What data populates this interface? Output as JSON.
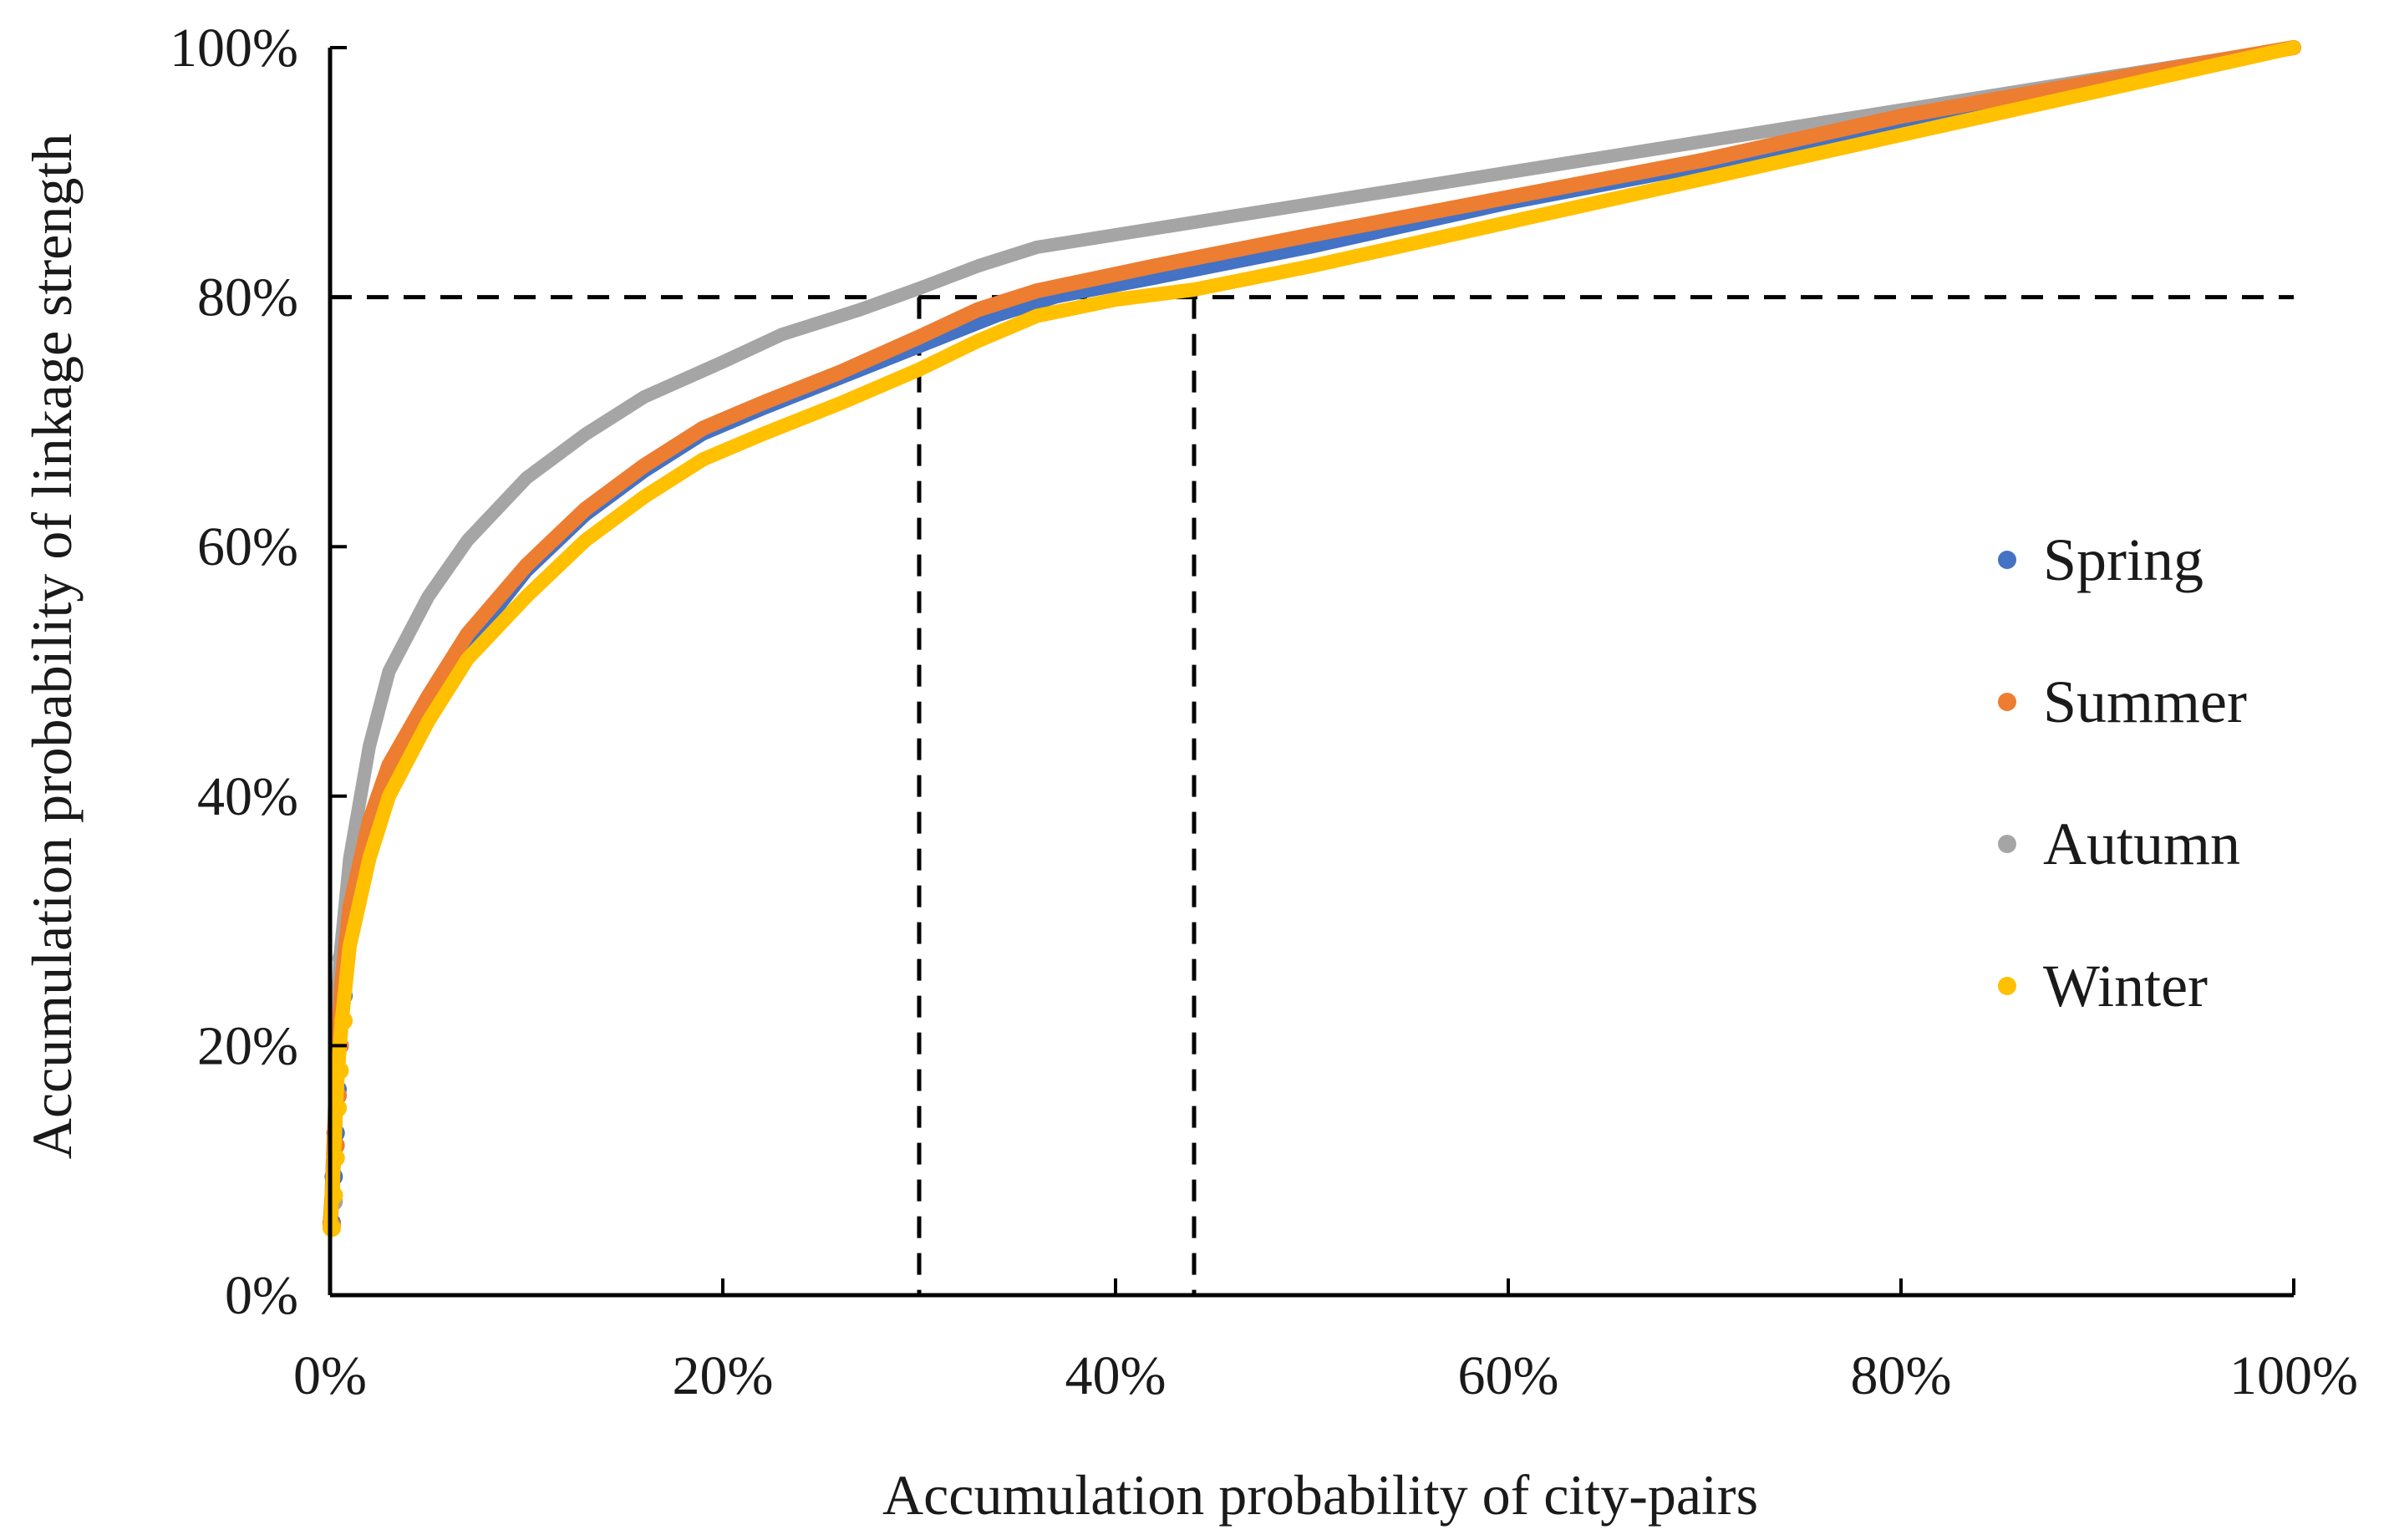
{
  "chart_data": {
    "type": "line",
    "title": "",
    "xlabel": "Accumulation probability of city-pairs",
    "ylabel": "Accumulation probability of linkage strength",
    "xlim": [
      0,
      100
    ],
    "ylim": [
      0,
      100
    ],
    "x_ticks": [
      "0%",
      "20%",
      "40%",
      "60%",
      "80%",
      "100%"
    ],
    "y_ticks": [
      "0%",
      "20%",
      "40%",
      "60%",
      "80%",
      "100%"
    ],
    "reference_lines": {
      "horizontal_y": 80,
      "vertical_x": [
        30,
        44
      ]
    },
    "legend_position": "right",
    "series": [
      {
        "name": "Spring",
        "color": "#4472C4",
        "points": [
          [
            0,
            5.8
          ],
          [
            0.1,
            9.5
          ],
          [
            0.2,
            13
          ],
          [
            0.3,
            16.5
          ],
          [
            0.4,
            20
          ],
          [
            0.6,
            24
          ],
          [
            1,
            29
          ],
          [
            2,
            36
          ],
          [
            3,
            41
          ],
          [
            5,
            47
          ],
          [
            7,
            52
          ],
          [
            10,
            58
          ],
          [
            13,
            62.5
          ],
          [
            16,
            66
          ],
          [
            19,
            69
          ],
          [
            22,
            71
          ],
          [
            26,
            73.5
          ],
          [
            30,
            76
          ],
          [
            34,
            78.5
          ],
          [
            37,
            80
          ],
          [
            42,
            81.5
          ],
          [
            50,
            84
          ],
          [
            60,
            87.5
          ],
          [
            70,
            90.5
          ],
          [
            80,
            94
          ],
          [
            90,
            97
          ],
          [
            100,
            100
          ]
        ]
      },
      {
        "name": "Summer",
        "color": "#ED7D31",
        "points": [
          [
            0,
            5.6
          ],
          [
            0.1,
            8
          ],
          [
            0.2,
            12
          ],
          [
            0.3,
            16
          ],
          [
            0.4,
            20
          ],
          [
            0.6,
            25
          ],
          [
            1,
            31
          ],
          [
            2,
            38
          ],
          [
            3,
            42.5
          ],
          [
            5,
            48
          ],
          [
            7,
            53
          ],
          [
            10,
            58.5
          ],
          [
            13,
            63
          ],
          [
            16,
            66.5
          ],
          [
            19,
            69.5
          ],
          [
            22,
            71.5
          ],
          [
            26,
            74
          ],
          [
            30,
            76.8
          ],
          [
            33,
            79
          ],
          [
            36,
            80.5
          ],
          [
            42,
            82.5
          ],
          [
            50,
            85
          ],
          [
            60,
            88
          ],
          [
            70,
            91
          ],
          [
            80,
            94.5
          ],
          [
            90,
            97.3
          ],
          [
            100,
            100
          ]
        ]
      },
      {
        "name": "Autumn",
        "color": "#A5A5A5",
        "points": [
          [
            0,
            5.8
          ],
          [
            0.1,
            7.5
          ],
          [
            0.2,
            13
          ],
          [
            0.3,
            20
          ],
          [
            0.5,
            27
          ],
          [
            1,
            35
          ],
          [
            2,
            44
          ],
          [
            3,
            50
          ],
          [
            5,
            56
          ],
          [
            7,
            60.5
          ],
          [
            10,
            65.5
          ],
          [
            13,
            69
          ],
          [
            16,
            72
          ],
          [
            20,
            74.8
          ],
          [
            23,
            77
          ],
          [
            27,
            79
          ],
          [
            30,
            80.7
          ],
          [
            33,
            82.5
          ],
          [
            36,
            84
          ],
          [
            42,
            85.5
          ],
          [
            50,
            87.5
          ],
          [
            60,
            90
          ],
          [
            70,
            92.5
          ],
          [
            80,
            95
          ],
          [
            90,
            97.5
          ],
          [
            100,
            100
          ]
        ]
      },
      {
        "name": "Winter",
        "color": "#FFC000",
        "points": [
          [
            0,
            5.4
          ],
          [
            0.1,
            8
          ],
          [
            0.2,
            11
          ],
          [
            0.3,
            15
          ],
          [
            0.4,
            18
          ],
          [
            0.6,
            22
          ],
          [
            1,
            28
          ],
          [
            2,
            35
          ],
          [
            3,
            40
          ],
          [
            5,
            46
          ],
          [
            7,
            51
          ],
          [
            10,
            56
          ],
          [
            13,
            60.5
          ],
          [
            16,
            64
          ],
          [
            19,
            67
          ],
          [
            22,
            69
          ],
          [
            26,
            71.5
          ],
          [
            30,
            74.2
          ],
          [
            33,
            76.5
          ],
          [
            36,
            78.5
          ],
          [
            40,
            79.8
          ],
          [
            44,
            80.6
          ],
          [
            50,
            82.5
          ],
          [
            60,
            86
          ],
          [
            70,
            89.5
          ],
          [
            80,
            93
          ],
          [
            90,
            96.5
          ],
          [
            100,
            100
          ]
        ]
      }
    ]
  }
}
